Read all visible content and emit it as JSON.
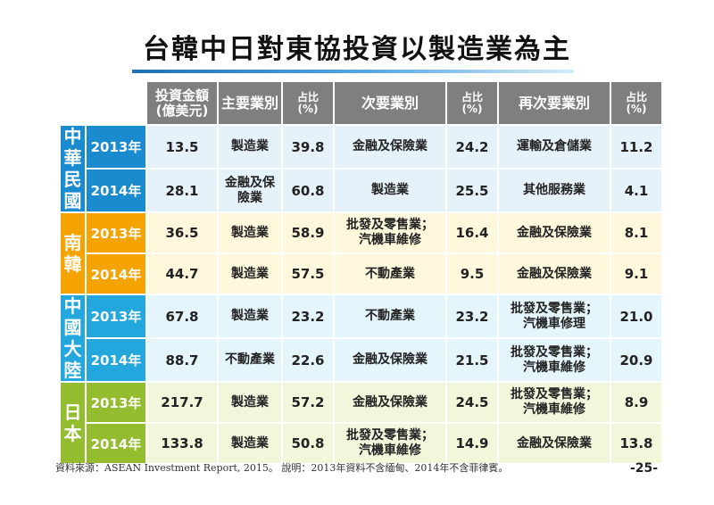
{
  "title": "台韓中日對東協投資以製造業為主",
  "headers": {
    "amount": "投資金額\n(億美元)",
    "primary": "主要業別",
    "primary_pct": "占比\n(%)",
    "secondary": "次要業別",
    "secondary_pct": "占比\n(%)",
    "tertiary": "再次要業別",
    "tertiary_pct": "占比\n(%)"
  },
  "groups": [
    {
      "label": "中\n華\n民\n國",
      "color": "#1b8bd0",
      "rows": [
        {
          "year": "2013年",
          "amount": "13.5",
          "primary": "製造業",
          "primary_pct": "39.8",
          "secondary": "金融及保險業",
          "secondary_pct": "24.2",
          "tertiary": "運輸及倉儲業",
          "tertiary_pct": "11.2"
        },
        {
          "year": "2014年",
          "amount": "28.1",
          "primary": "金融及保\n險業",
          "primary_pct": "60.8",
          "secondary": "製造業",
          "secondary_pct": "25.5",
          "tertiary": "其他服務業",
          "tertiary_pct": "4.1"
        }
      ]
    },
    {
      "label": "南\n韓",
      "color": "#f4a300",
      "rows": [
        {
          "year": "2013年",
          "amount": "36.5",
          "primary": "製造業",
          "primary_pct": "58.9",
          "secondary": "批發及零售業；\n汽機車維修",
          "secondary_pct": "16.4",
          "tertiary": "金融及保險業",
          "tertiary_pct": "8.1"
        },
        {
          "year": "2014年",
          "amount": "44.7",
          "primary": "製造業",
          "primary_pct": "57.5",
          "secondary": "不動產業",
          "secondary_pct": "9.5",
          "tertiary": "金融及保險業",
          "tertiary_pct": "9.1"
        }
      ]
    },
    {
      "label": "中\n國\n大\n陸",
      "color": "#24a7dc",
      "rows": [
        {
          "year": "2013年",
          "amount": "67.8",
          "primary": "製造業",
          "primary_pct": "23.2",
          "secondary": "不動產業",
          "secondary_pct": "23.2",
          "tertiary": "批發及零售業；\n汽機車修理",
          "tertiary_pct": "21.0"
        },
        {
          "year": "2014年",
          "amount": "88.7",
          "primary": "不動產業",
          "primary_pct": "22.6",
          "secondary": "金融及保險業",
          "secondary_pct": "21.5",
          "tertiary": "批發及零售業；\n汽機車維修",
          "tertiary_pct": "20.9"
        }
      ]
    },
    {
      "label": "日\n本",
      "color": "#93bc2e",
      "rows": [
        {
          "year": "2013年",
          "amount": "217.7",
          "primary": "製造業",
          "primary_pct": "57.2",
          "secondary": "金融及保險業",
          "secondary_pct": "24.5",
          "tertiary": "批發及零售業；\n汽機車維修",
          "tertiary_pct": "8.9"
        },
        {
          "year": "2014年",
          "amount": "133.8",
          "primary": "製造業",
          "primary_pct": "50.8",
          "secondary": "批發及零售業；\n汽機車維修",
          "secondary_pct": "14.9",
          "tertiary": "金融及保險業",
          "tertiary_pct": "13.8"
        }
      ]
    }
  ],
  "footer": "資料來源：ASEAN Investment Report, 2015。 說明：2013年資料不含緬甸、2014年不含菲律賓。",
  "page_number": "-25-"
}
